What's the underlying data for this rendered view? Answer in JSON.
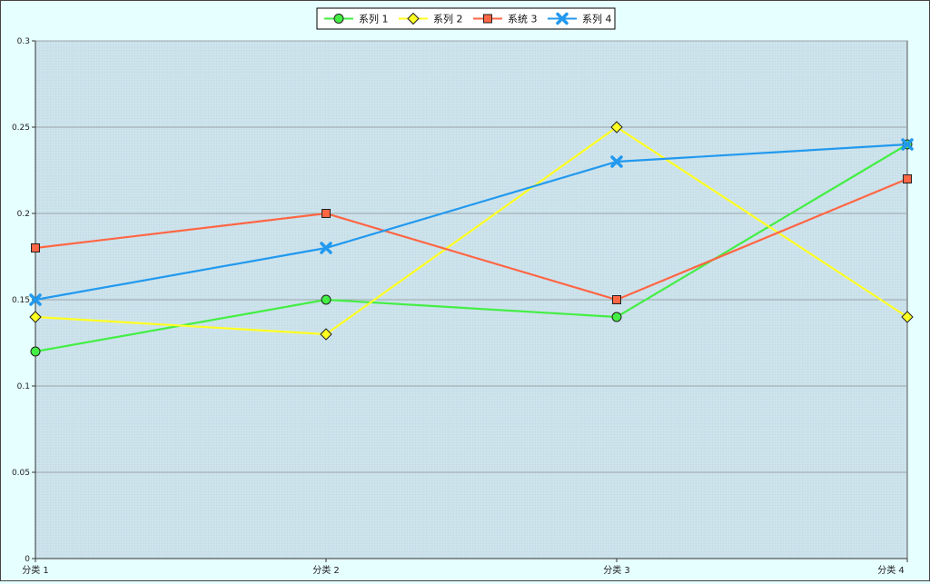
{
  "chart_data": {
    "type": "line",
    "categories": [
      "分类 1",
      "分类 2",
      "分类 3",
      "分类 4"
    ],
    "series": [
      {
        "name": "系列 1",
        "values": [
          0.12,
          0.15,
          0.14,
          0.24
        ],
        "color": "#44ee44",
        "marker": "circle"
      },
      {
        "name": "系列 2",
        "values": [
          0.14,
          0.13,
          0.25,
          0.14
        ],
        "color": "#ffff22",
        "marker": "diamond"
      },
      {
        "name": "系统 3",
        "values": [
          0.18,
          0.2,
          0.15,
          0.22
        ],
        "color": "#ff6644",
        "marker": "square"
      },
      {
        "name": "系列 4",
        "values": [
          0.15,
          0.18,
          0.23,
          0.24
        ],
        "color": "#2299ee",
        "marker": "x"
      }
    ],
    "ylim": [
      0,
      0.3
    ],
    "yticks": [
      "0",
      "0.05",
      "0.1",
      "0.15",
      "0.2",
      "0.25",
      "0.3"
    ],
    "ytick_values": [
      0,
      0.05,
      0.1,
      0.15,
      0.2,
      0.25,
      0.3
    ],
    "grid": true,
    "legend_position": "top-center",
    "title": "",
    "xlabel": "",
    "ylabel": ""
  },
  "colors": {
    "background": "#e6ffff",
    "plot_area": "#cde3ec",
    "gridline": "#9aa3a8",
    "axis": "#333333"
  }
}
